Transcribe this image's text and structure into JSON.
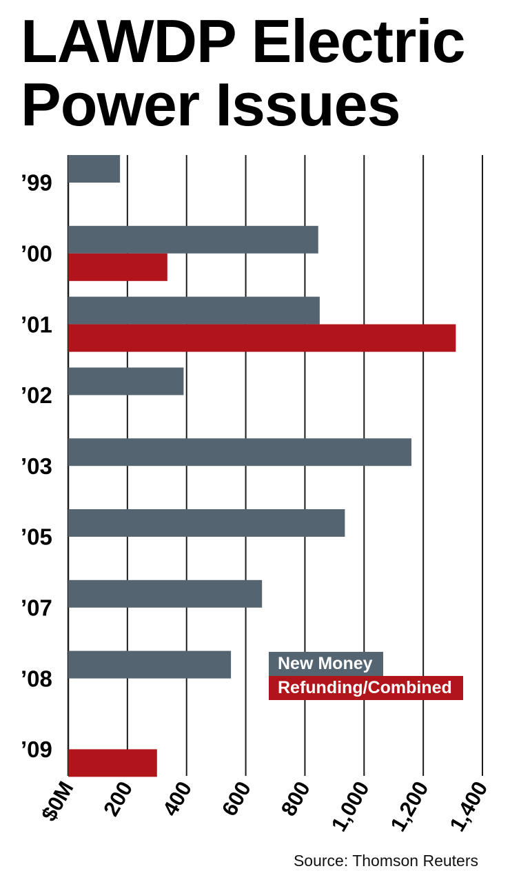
{
  "chart_data": {
    "type": "bar",
    "orientation": "horizontal",
    "title_lines": [
      "LAWDP Electric",
      "Power Issues"
    ],
    "categories": [
      "’99",
      "’00",
      "’01",
      "’02",
      "’03",
      "’05",
      "’07",
      "’08",
      "’09"
    ],
    "series": [
      {
        "name": "New Money",
        "color": "#546470",
        "values": [
          175,
          845,
          850,
          390,
          1160,
          935,
          655,
          550,
          null
        ]
      },
      {
        "name": "Refunding/Combined",
        "color": "#b2141b",
        "values": [
          null,
          335,
          1310,
          null,
          null,
          null,
          null,
          null,
          300
        ]
      }
    ],
    "xlim": [
      0,
      1400
    ],
    "xticks": [
      0,
      200,
      400,
      600,
      800,
      1000,
      1200,
      1400
    ],
    "xtick_labels": [
      "$0M",
      "200",
      "400",
      "600",
      "800",
      "1,000",
      "1,200",
      "1,400"
    ],
    "grid": "vertical",
    "legend_position": "lower-right",
    "source": "Source: Thomson Reuters"
  }
}
